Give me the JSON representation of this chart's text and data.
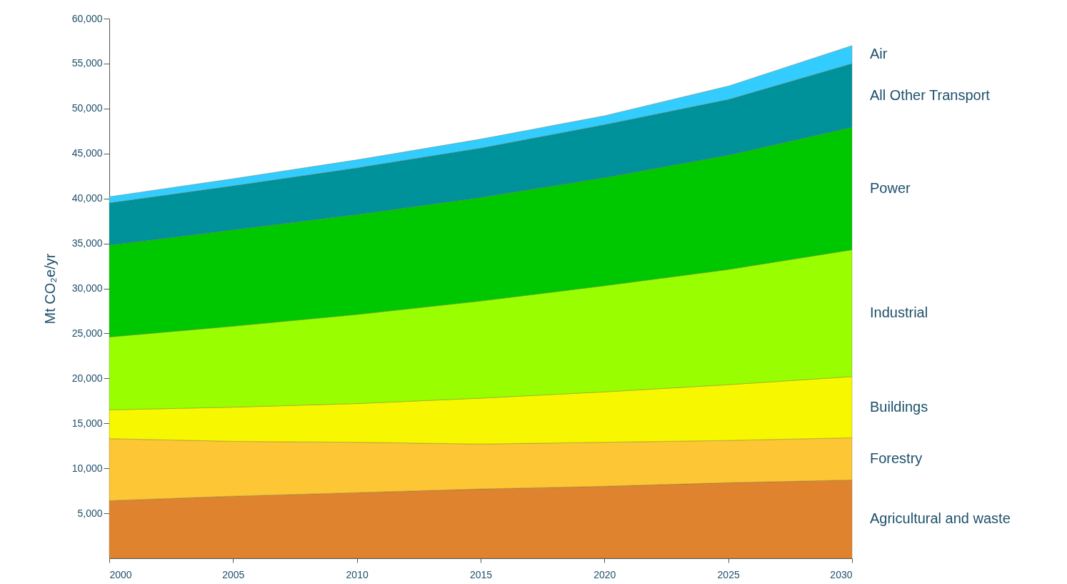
{
  "chart_data": {
    "type": "area",
    "stacked": true,
    "ylabel": "Mt CO₂e/yr",
    "x": [
      2000,
      2005,
      2010,
      2015,
      2020,
      2025,
      2030
    ],
    "xlim": [
      2000,
      2030
    ],
    "xticks": [
      2000,
      2005,
      2010,
      2015,
      2020,
      2025,
      2030
    ],
    "ylim": [
      0,
      60000
    ],
    "yticks": [
      {
        "value": 5000,
        "label": "5,000"
      },
      {
        "value": 10000,
        "label": "10,000"
      },
      {
        "value": 15000,
        "label": "15,000"
      },
      {
        "value": 20000,
        "label": "20,000"
      },
      {
        "value": 25000,
        "label": "25,000"
      },
      {
        "value": 30000,
        "label": "30,000"
      },
      {
        "value": 35000,
        "label": "35,000"
      },
      {
        "value": 40000,
        "label": "40,000"
      },
      {
        "value": 45000,
        "label": "45,000"
      },
      {
        "value": 50000,
        "label": "50,000"
      },
      {
        "value": 55000,
        "label": "55,000"
      },
      {
        "value": 60000,
        "label": "60,000"
      }
    ],
    "grid": false,
    "legend": "right",
    "series": [
      {
        "name": "Agricultural and waste",
        "color": "#e0832f",
        "values": [
          6400,
          6900,
          7300,
          7700,
          8000,
          8400,
          8700
        ]
      },
      {
        "name": "Forestry",
        "color": "#fcc634",
        "values": [
          6900,
          6100,
          5600,
          5000,
          4900,
          4700,
          4700
        ]
      },
      {
        "name": "Buildings",
        "color": "#f7f700",
        "values": [
          3200,
          3800,
          4300,
          5100,
          5600,
          6200,
          6800
        ]
      },
      {
        "name": "Industrial",
        "color": "#99ff00",
        "values": [
          8100,
          9000,
          9900,
          10800,
          11800,
          12800,
          14100
        ]
      },
      {
        "name": "Power",
        "color": "#00c800",
        "values": [
          10200,
          10700,
          11100,
          11500,
          12000,
          12700,
          13600
        ]
      },
      {
        "name": "All Other Transport",
        "color": "#00929a",
        "values": [
          4700,
          4900,
          5200,
          5500,
          5900,
          6200,
          7100
        ]
      },
      {
        "name": "Air",
        "color": "#33ccff",
        "values": [
          700,
          800,
          900,
          1000,
          1000,
          1500,
          2000
        ]
      }
    ]
  }
}
